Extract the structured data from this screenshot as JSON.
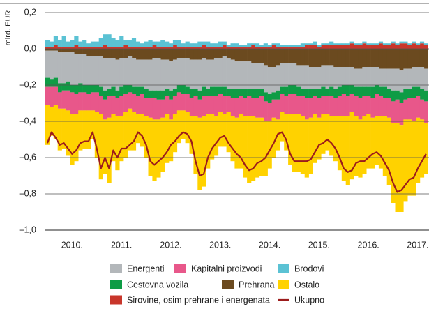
{
  "chart_data": {
    "type": "bar",
    "stacked": true,
    "ylabel": "mlrd. EUR",
    "ylim": [
      -1.0,
      0.2
    ],
    "yticks": [
      {
        "value": 0.2,
        "label": "0,2"
      },
      {
        "value": 0,
        "label": "0,0"
      },
      {
        "value": -0.2,
        "label": "–0,2"
      },
      {
        "value": -0.4,
        "label": "–0,4"
      },
      {
        "value": -0.6,
        "label": "–0,6"
      },
      {
        "value": -0.8,
        "label": "–0,8"
      },
      {
        "value": -1.0,
        "label": "–1,0"
      }
    ],
    "grid": true,
    "categories": [
      null,
      null,
      null,
      null,
      null,
      null,
      "2010.",
      null,
      null,
      null,
      null,
      null,
      null,
      null,
      null,
      null,
      null,
      null,
      "2011.",
      null,
      null,
      null,
      null,
      null,
      null,
      null,
      null,
      null,
      null,
      null,
      "2012.",
      null,
      null,
      null,
      null,
      null,
      null,
      null,
      null,
      null,
      null,
      null,
      "2013.",
      null,
      null,
      null,
      null,
      null,
      null,
      null,
      null,
      null,
      null,
      null,
      "2014.",
      null,
      null,
      null,
      null,
      null,
      null,
      null,
      null,
      null,
      null,
      null,
      "2015.",
      null,
      null,
      null,
      null,
      null,
      null,
      null,
      null,
      null,
      null,
      null,
      "2016.",
      null,
      null,
      null,
      null,
      null,
      null,
      null,
      null,
      null,
      null,
      null,
      "2017.",
      null,
      null
    ],
    "series": [
      {
        "name": "Sirovine, osim prehrane i energenata",
        "color": "#c8362b",
        "values": [
          0.01,
          0.01,
          0.02,
          0.01,
          0.01,
          0.01,
          0.01,
          0.02,
          0.01,
          0.01,
          0.01,
          0.01,
          0.01,
          0.01,
          0.02,
          0.01,
          0.01,
          0.01,
          0.01,
          0.02,
          0.01,
          0.01,
          0.01,
          0.01,
          0.01,
          0.01,
          0.02,
          0.01,
          0.01,
          0.01,
          0.01,
          0.02,
          0.01,
          0.01,
          0.01,
          0.01,
          0.01,
          0.01,
          0.02,
          0.01,
          0.01,
          0.01,
          0.01,
          0.02,
          0.01,
          0.01,
          0.01,
          0.01,
          0.01,
          0.01,
          0.02,
          0.01,
          0.01,
          0.01,
          0.01,
          0.02,
          0.01,
          0.01,
          0.01,
          0.01,
          0.01,
          0.01,
          0.01,
          0.02,
          0.02,
          0.02,
          0.01,
          0.02,
          0.02,
          0.02,
          0.02,
          0.02,
          0.02,
          0.02,
          0.03,
          0.02,
          0.02,
          0.03,
          0.02,
          0.02,
          0.02,
          0.03,
          0.02,
          0.02,
          0.03,
          0.02,
          0.03,
          0.03,
          0.02,
          0.03,
          0.02,
          0.03,
          0.02
        ]
      },
      {
        "name": "Brodovi",
        "color": "#5bc2d4",
        "values": [
          0.04,
          0.03,
          0.05,
          0.04,
          0.06,
          0.03,
          0.04,
          0.05,
          0.03,
          0.04,
          0.02,
          0.03,
          0.03,
          0.05,
          0.06,
          0.07,
          0.05,
          0.04,
          0.06,
          0.03,
          0.04,
          0.05,
          0.03,
          0.02,
          0.03,
          0.04,
          0.02,
          0.03,
          0.04,
          0.03,
          0.02,
          0.03,
          0.04,
          0.02,
          0.03,
          0.02,
          0.02,
          0.03,
          0.02,
          0.03,
          0.02,
          0.02,
          0.03,
          0.02,
          0.01,
          0.02,
          0.02,
          0.01,
          0.01,
          0.02,
          0.01,
          0.02,
          0.01,
          0.02,
          0.01,
          0.01,
          0.02,
          0.01,
          0.01,
          0.01,
          0.01,
          0.01,
          0.02,
          0.01,
          0.01,
          0.02,
          0.01,
          0.01,
          0.01,
          0.02,
          0.01,
          0.01,
          0.01,
          0.01,
          0.01,
          0.01,
          0.01,
          0.01,
          0.01,
          0.01,
          0.01,
          0.01,
          0.01,
          0.01,
          0.01,
          0.01,
          0.01,
          0.01,
          0.01,
          0.01,
          0.01,
          0.01,
          0.01
        ]
      },
      {
        "name": "Prehrana",
        "color": "#6b4a1f",
        "values": [
          -0.01,
          -0.01,
          -0.01,
          -0.02,
          -0.02,
          -0.02,
          -0.02,
          -0.03,
          -0.03,
          -0.03,
          -0.04,
          -0.04,
          -0.04,
          -0.04,
          -0.05,
          -0.05,
          -0.05,
          -0.06,
          -0.05,
          -0.05,
          -0.04,
          -0.05,
          -0.06,
          -0.06,
          -0.06,
          -0.06,
          -0.05,
          -0.05,
          -0.06,
          -0.06,
          -0.07,
          -0.06,
          -0.05,
          -0.05,
          -0.05,
          -0.06,
          -0.06,
          -0.06,
          -0.05,
          -0.06,
          -0.06,
          -0.05,
          -0.05,
          -0.04,
          -0.05,
          -0.06,
          -0.07,
          -0.07,
          -0.07,
          -0.07,
          -0.08,
          -0.08,
          -0.08,
          -0.09,
          -0.1,
          -0.1,
          -0.09,
          -0.08,
          -0.08,
          -0.08,
          -0.08,
          -0.09,
          -0.09,
          -0.09,
          -0.1,
          -0.1,
          -0.1,
          -0.09,
          -0.09,
          -0.09,
          -0.1,
          -0.1,
          -0.1,
          -0.1,
          -0.1,
          -0.11,
          -0.11,
          -0.1,
          -0.1,
          -0.1,
          -0.1,
          -0.11,
          -0.11,
          -0.11,
          -0.11,
          -0.11,
          -0.12,
          -0.11,
          -0.11,
          -0.1,
          -0.1,
          -0.1,
          -0.11
        ]
      },
      {
        "name": "Energenti",
        "color": "#b3b7ba",
        "values": [
          -0.15,
          -0.16,
          -0.15,
          -0.17,
          -0.17,
          -0.16,
          -0.18,
          -0.17,
          -0.16,
          -0.17,
          -0.16,
          -0.16,
          -0.16,
          -0.17,
          -0.18,
          -0.17,
          -0.16,
          -0.17,
          -0.16,
          -0.15,
          -0.16,
          -0.16,
          -0.15,
          -0.15,
          -0.16,
          -0.17,
          -0.18,
          -0.18,
          -0.17,
          -0.16,
          -0.16,
          -0.16,
          -0.15,
          -0.15,
          -0.16,
          -0.16,
          -0.16,
          -0.17,
          -0.16,
          -0.16,
          -0.15,
          -0.16,
          -0.16,
          -0.17,
          -0.17,
          -0.16,
          -0.15,
          -0.15,
          -0.15,
          -0.15,
          -0.14,
          -0.14,
          -0.14,
          -0.15,
          -0.15,
          -0.14,
          -0.14,
          -0.13,
          -0.13,
          -0.12,
          -0.12,
          -0.12,
          -0.13,
          -0.13,
          -0.12,
          -0.12,
          -0.12,
          -0.12,
          -0.13,
          -0.12,
          -0.12,
          -0.11,
          -0.1,
          -0.1,
          -0.1,
          -0.1,
          -0.1,
          -0.11,
          -0.11,
          -0.11,
          -0.1,
          -0.1,
          -0.1,
          -0.11,
          -0.12,
          -0.12,
          -0.12,
          -0.11,
          -0.11,
          -0.11,
          -0.11,
          -0.12,
          -0.12
        ]
      },
      {
        "name": "Cestovna vozila",
        "color": "#0e9c45",
        "values": [
          -0.05,
          -0.04,
          -0.05,
          -0.05,
          -0.04,
          -0.05,
          -0.04,
          -0.05,
          -0.05,
          -0.04,
          -0.05,
          -0.04,
          -0.04,
          -0.05,
          -0.05,
          -0.04,
          -0.05,
          -0.04,
          -0.05,
          -0.05,
          -0.04,
          -0.04,
          -0.05,
          -0.04,
          -0.05,
          -0.04,
          -0.04,
          -0.05,
          -0.05,
          -0.04,
          -0.05,
          -0.04,
          -0.04,
          -0.05,
          -0.04,
          -0.05,
          -0.04,
          -0.05,
          -0.05,
          -0.04,
          -0.05,
          -0.05,
          -0.04,
          -0.05,
          -0.04,
          -0.05,
          -0.05,
          -0.04,
          -0.05,
          -0.04,
          -0.05,
          -0.05,
          -0.04,
          -0.05,
          -0.05,
          -0.04,
          -0.05,
          -0.04,
          -0.05,
          -0.05,
          -0.05,
          -0.05,
          -0.04,
          -0.05,
          -0.05,
          -0.04,
          -0.05,
          -0.05,
          -0.04,
          -0.05,
          -0.05,
          -0.05,
          -0.05,
          -0.06,
          -0.05,
          -0.05,
          -0.06,
          -0.05,
          -0.05,
          -0.06,
          -0.05,
          -0.05,
          -0.06,
          -0.05,
          -0.06,
          -0.05,
          -0.06,
          -0.06,
          -0.05,
          -0.06,
          -0.05,
          -0.06,
          -0.06
        ]
      },
      {
        "name": "Kapitalni proizvodi",
        "color": "#e8578a",
        "values": [
          -0.1,
          -0.11,
          -0.1,
          -0.09,
          -0.1,
          -0.11,
          -0.12,
          -0.11,
          -0.1,
          -0.1,
          -0.09,
          -0.1,
          -0.11,
          -0.1,
          -0.11,
          -0.12,
          -0.1,
          -0.1,
          -0.11,
          -0.1,
          -0.09,
          -0.1,
          -0.1,
          -0.11,
          -0.1,
          -0.11,
          -0.12,
          -0.11,
          -0.1,
          -0.1,
          -0.11,
          -0.1,
          -0.1,
          -0.09,
          -0.1,
          -0.1,
          -0.11,
          -0.1,
          -0.11,
          -0.1,
          -0.1,
          -0.11,
          -0.1,
          -0.1,
          -0.09,
          -0.1,
          -0.11,
          -0.1,
          -0.1,
          -0.11,
          -0.1,
          -0.11,
          -0.12,
          -0.11,
          -0.1,
          -0.1,
          -0.11,
          -0.1,
          -0.1,
          -0.11,
          -0.11,
          -0.1,
          -0.11,
          -0.12,
          -0.11,
          -0.1,
          -0.11,
          -0.1,
          -0.1,
          -0.11,
          -0.1,
          -0.11,
          -0.12,
          -0.11,
          -0.1,
          -0.11,
          -0.12,
          -0.11,
          -0.1,
          -0.11,
          -0.12,
          -0.11,
          -0.1,
          -0.11,
          -0.12,
          -0.13,
          -0.12,
          -0.11,
          -0.12,
          -0.13,
          -0.12,
          -0.11,
          -0.12
        ]
      },
      {
        "name": "Ostalo",
        "color": "#ffd200",
        "values": [
          -0.22,
          -0.16,
          -0.19,
          -0.23,
          -0.22,
          -0.25,
          -0.28,
          -0.26,
          -0.22,
          -0.21,
          -0.21,
          -0.16,
          -0.25,
          -0.36,
          -0.3,
          -0.36,
          -0.26,
          -0.3,
          -0.25,
          -0.25,
          -0.23,
          -0.21,
          -0.16,
          -0.18,
          -0.23,
          -0.32,
          -0.34,
          -0.32,
          -0.3,
          -0.27,
          -0.23,
          -0.21,
          -0.18,
          -0.16,
          -0.17,
          -0.21,
          -0.32,
          -0.4,
          -0.39,
          -0.3,
          -0.25,
          -0.22,
          -0.19,
          -0.18,
          -0.22,
          -0.25,
          -0.28,
          -0.3,
          -0.34,
          -0.37,
          -0.36,
          -0.33,
          -0.32,
          -0.3,
          -0.26,
          -0.22,
          -0.17,
          -0.16,
          -0.2,
          -0.28,
          -0.32,
          -0.32,
          -0.32,
          -0.32,
          -0.31,
          -0.27,
          -0.23,
          -0.22,
          -0.2,
          -0.22,
          -0.25,
          -0.3,
          -0.36,
          -0.38,
          -0.37,
          -0.33,
          -0.32,
          -0.32,
          -0.3,
          -0.28,
          -0.27,
          -0.29,
          -0.33,
          -0.37,
          -0.44,
          -0.49,
          -0.48,
          -0.45,
          -0.42,
          -0.41,
          -0.36,
          -0.32,
          -0.28
        ]
      },
      {
        "name": "Ukupno",
        "color": "#9c1c1c",
        "type": "line",
        "values": [
          -0.52,
          -0.46,
          -0.49,
          -0.53,
          -0.52,
          -0.55,
          -0.58,
          -0.56,
          -0.52,
          -0.51,
          -0.51,
          -0.46,
          -0.55,
          -0.66,
          -0.6,
          -0.66,
          -0.56,
          -0.6,
          -0.55,
          -0.55,
          -0.53,
          -0.51,
          -0.46,
          -0.48,
          -0.53,
          -0.62,
          -0.64,
          -0.62,
          -0.6,
          -0.57,
          -0.53,
          -0.51,
          -0.48,
          -0.46,
          -0.47,
          -0.51,
          -0.62,
          -0.7,
          -0.69,
          -0.6,
          -0.55,
          -0.52,
          -0.49,
          -0.48,
          -0.52,
          -0.55,
          -0.58,
          -0.6,
          -0.64,
          -0.67,
          -0.66,
          -0.63,
          -0.62,
          -0.6,
          -0.56,
          -0.52,
          -0.47,
          -0.46,
          -0.5,
          -0.58,
          -0.62,
          -0.62,
          -0.62,
          -0.62,
          -0.61,
          -0.57,
          -0.53,
          -0.52,
          -0.5,
          -0.52,
          -0.55,
          -0.6,
          -0.66,
          -0.68,
          -0.67,
          -0.63,
          -0.62,
          -0.62,
          -0.6,
          -0.58,
          -0.57,
          -0.59,
          -0.63,
          -0.67,
          -0.74,
          -0.79,
          -0.78,
          -0.75,
          -0.72,
          -0.71,
          -0.66,
          -0.62,
          -0.58
        ]
      }
    ]
  }
}
